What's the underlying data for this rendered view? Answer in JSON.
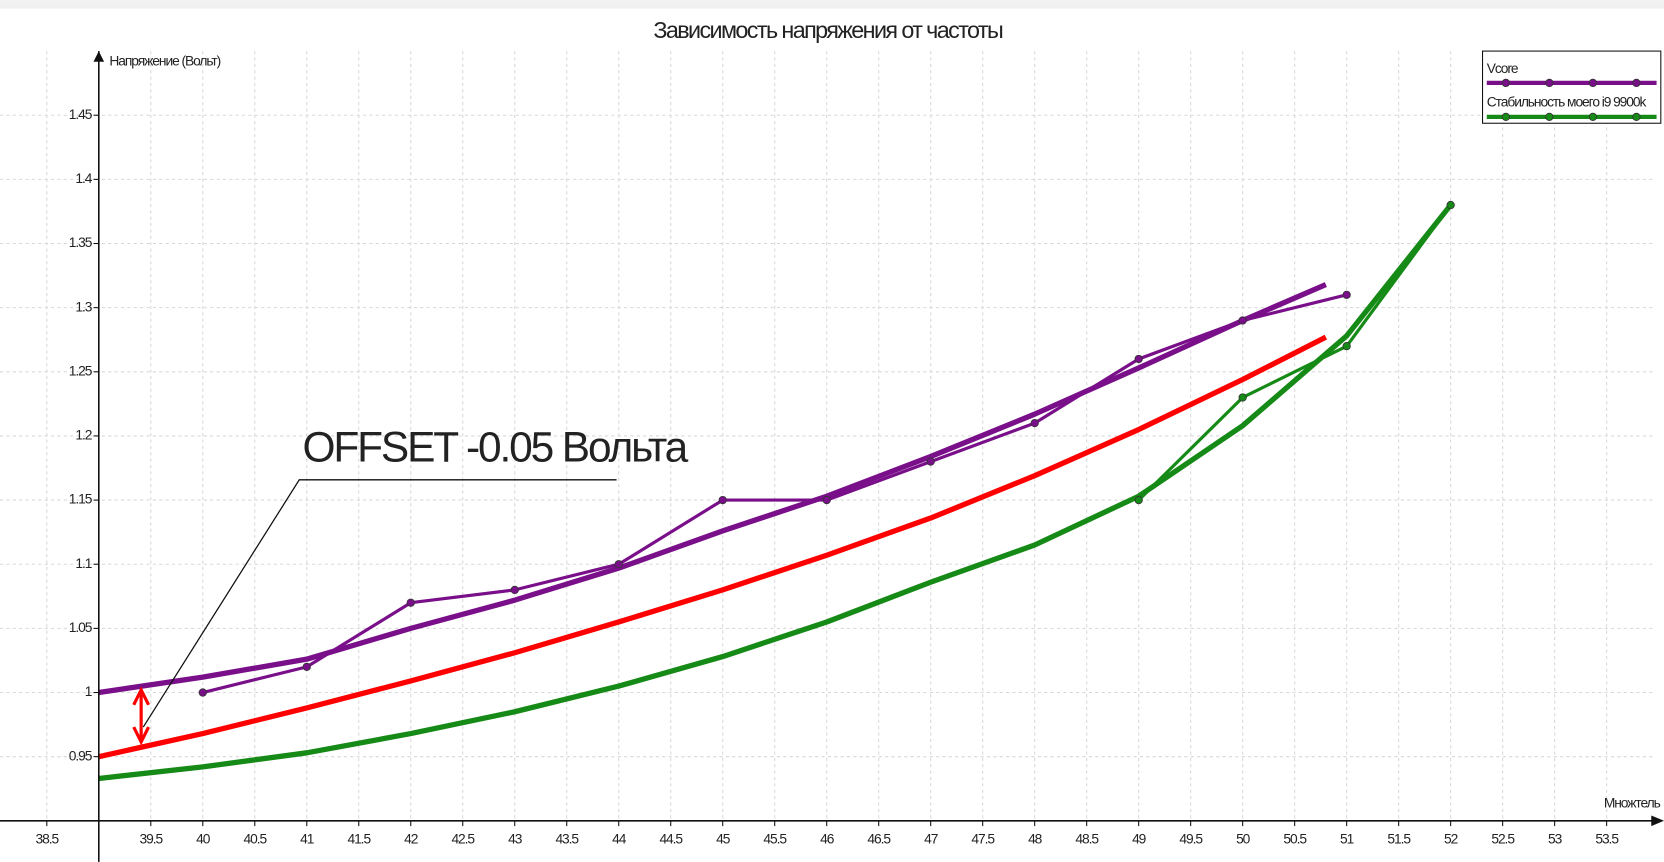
{
  "chart_data": {
    "type": "line",
    "title": "Зависимость напряжения от частоты",
    "ylabel": "Напряжение (Вольт)",
    "xlabel": "Множтель",
    "annotation": "OFFSET -0.05 Вольта",
    "xlim": [
      38.05,
      53.97
    ],
    "ylim": [
      0.868,
      1.5
    ],
    "axes_origin": [
      39,
      0.9
    ],
    "xticks": [
      38.5,
      39.5,
      40,
      40.5,
      41,
      41.5,
      42,
      42.5,
      43,
      43.5,
      44,
      44.5,
      45,
      45.5,
      46,
      46.5,
      47,
      47.5,
      48,
      48.5,
      49,
      49.5,
      50,
      50.5,
      51,
      51.5,
      52,
      52.5,
      53,
      53.5
    ],
    "yticks": [
      0.95,
      1,
      1.05,
      1.1,
      1.15,
      1.2,
      1.25,
      1.3,
      1.35,
      1.4,
      1.45
    ],
    "grid": true,
    "legend": "top-right",
    "series": [
      {
        "name": "Vcore",
        "color": "#7a0f8a",
        "x": [
          40,
          41,
          42,
          43,
          44,
          45,
          46,
          47,
          48,
          49,
          50,
          51
        ],
        "values": [
          1.0,
          1.02,
          1.07,
          1.08,
          1.1,
          1.15,
          1.15,
          1.18,
          1.21,
          1.26,
          1.29,
          1.31
        ]
      },
      {
        "name": "Стабильность моего i9 9900k",
        "color": "#168a16",
        "x": [
          49,
          50,
          51,
          52
        ],
        "values": [
          1.15,
          1.23,
          1.27,
          1.38
        ]
      }
    ],
    "trendlines": [
      {
        "color": "#7a0f8a",
        "x": [
          39,
          40,
          41,
          42,
          43,
          44,
          45,
          46,
          47,
          48,
          49,
          50,
          50.8
        ],
        "values": [
          1.0,
          1.012,
          1.026,
          1.05,
          1.072,
          1.097,
          1.126,
          1.153,
          1.184,
          1.217,
          1.253,
          1.29,
          1.318
        ]
      },
      {
        "color": "#ff0000",
        "x": [
          39,
          40,
          41,
          42,
          43,
          44,
          45,
          46,
          47,
          48,
          49,
          50,
          50.8
        ],
        "values": [
          0.95,
          0.968,
          0.988,
          1.009,
          1.031,
          1.055,
          1.08,
          1.107,
          1.136,
          1.169,
          1.205,
          1.244,
          1.277
        ]
      },
      {
        "color": "#168a16",
        "x": [
          39,
          40,
          41,
          42,
          43,
          44,
          45,
          46,
          47,
          48,
          49,
          50,
          51,
          52
        ],
        "values": [
          0.933,
          0.942,
          0.953,
          0.968,
          0.985,
          1.005,
          1.028,
          1.055,
          1.086,
          1.115,
          1.153,
          1.208,
          1.278,
          1.38
        ]
      }
    ]
  }
}
